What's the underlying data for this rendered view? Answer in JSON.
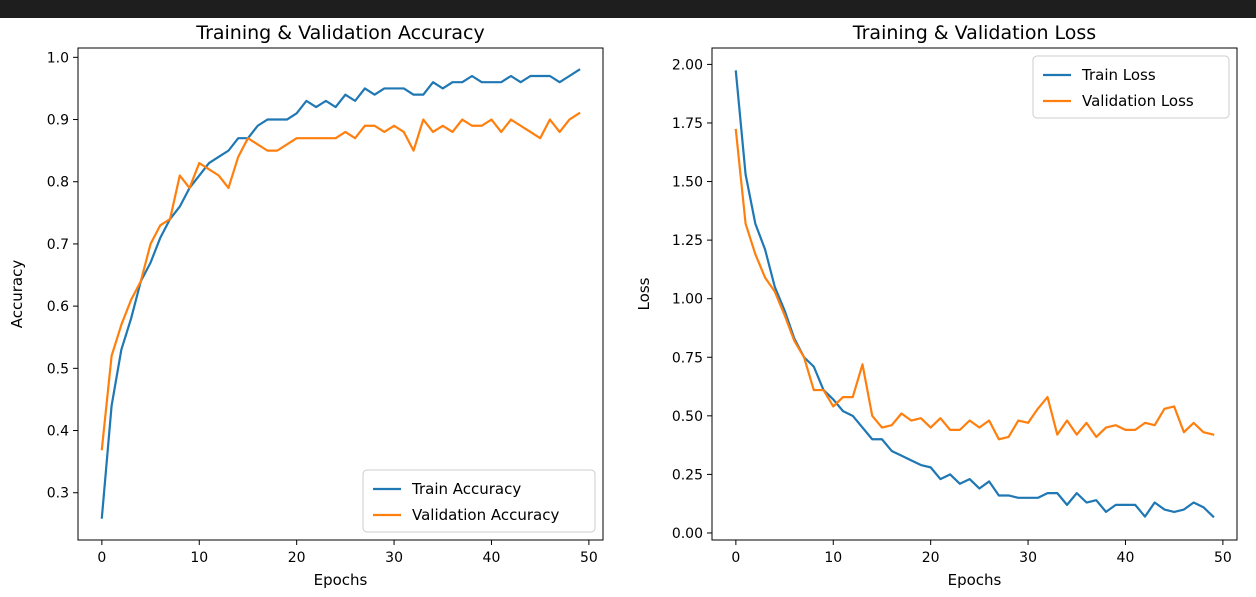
{
  "chart_data": [
    {
      "type": "line",
      "title": "Training & Validation Accuracy",
      "xlabel": "Epochs",
      "ylabel": "Accuracy",
      "xlim": [
        -2.45,
        51.45
      ],
      "ylim": [
        0.224,
        1.015
      ],
      "xticks": [
        0,
        10,
        20,
        30,
        40,
        50
      ],
      "yticks": [
        0.3,
        0.4,
        0.5,
        0.6,
        0.7,
        0.8,
        0.9,
        1.0
      ],
      "ytick_labels": [
        "0.3",
        "0.4",
        "0.5",
        "0.6",
        "0.7",
        "0.8",
        "0.9",
        "1.0"
      ],
      "grid": false,
      "legend": "lower right",
      "x": [
        0,
        1,
        2,
        3,
        4,
        5,
        6,
        7,
        8,
        9,
        10,
        11,
        12,
        13,
        14,
        15,
        16,
        17,
        18,
        19,
        20,
        21,
        22,
        23,
        24,
        25,
        26,
        27,
        28,
        29,
        30,
        31,
        32,
        33,
        34,
        35,
        36,
        37,
        38,
        39,
        40,
        41,
        42,
        43,
        44,
        45,
        46,
        47,
        48,
        49
      ],
      "series": [
        {
          "name": "Train Accuracy",
          "color": "#1f77b4",
          "values": [
            0.26,
            0.44,
            0.53,
            0.58,
            0.64,
            0.67,
            0.71,
            0.74,
            0.76,
            0.79,
            0.81,
            0.83,
            0.84,
            0.85,
            0.87,
            0.87,
            0.89,
            0.9,
            0.9,
            0.9,
            0.91,
            0.93,
            0.92,
            0.93,
            0.92,
            0.94,
            0.93,
            0.95,
            0.94,
            0.95,
            0.95,
            0.95,
            0.94,
            0.94,
            0.96,
            0.95,
            0.96,
            0.96,
            0.97,
            0.96,
            0.96,
            0.96,
            0.97,
            0.96,
            0.97,
            0.97,
            0.97,
            0.96,
            0.97,
            0.98
          ]
        },
        {
          "name": "Validation Accuracy",
          "color": "#ff7f0e",
          "values": [
            0.37,
            0.52,
            0.57,
            0.61,
            0.64,
            0.7,
            0.73,
            0.74,
            0.81,
            0.79,
            0.83,
            0.82,
            0.81,
            0.79,
            0.84,
            0.87,
            0.86,
            0.85,
            0.85,
            0.86,
            0.87,
            0.87,
            0.87,
            0.87,
            0.87,
            0.88,
            0.87,
            0.89,
            0.89,
            0.88,
            0.89,
            0.88,
            0.85,
            0.9,
            0.88,
            0.89,
            0.88,
            0.9,
            0.89,
            0.89,
            0.9,
            0.88,
            0.9,
            0.89,
            0.88,
            0.87,
            0.9,
            0.88,
            0.9,
            0.91
          ]
        }
      ]
    },
    {
      "type": "line",
      "title": "Training & Validation Loss",
      "xlabel": "Epochs",
      "ylabel": "Loss",
      "xlim": [
        -2.45,
        51.45
      ],
      "ylim": [
        -0.03,
        2.07
      ],
      "xticks": [
        0,
        10,
        20,
        30,
        40,
        50
      ],
      "yticks": [
        0.0,
        0.25,
        0.5,
        0.75,
        1.0,
        1.25,
        1.5,
        1.75,
        2.0
      ],
      "ytick_labels": [
        "0.00",
        "0.25",
        "0.50",
        "0.75",
        "1.00",
        "1.25",
        "1.50",
        "1.75",
        "2.00"
      ],
      "grid": false,
      "legend": "upper right",
      "x": [
        0,
        1,
        2,
        3,
        4,
        5,
        6,
        7,
        8,
        9,
        10,
        11,
        12,
        13,
        14,
        15,
        16,
        17,
        18,
        19,
        20,
        21,
        22,
        23,
        24,
        25,
        26,
        27,
        28,
        29,
        30,
        31,
        32,
        33,
        34,
        35,
        36,
        37,
        38,
        39,
        40,
        41,
        42,
        43,
        44,
        45,
        46,
        47,
        48,
        49
      ],
      "series": [
        {
          "name": "Train Loss",
          "color": "#1f77b4",
          "values": [
            1.97,
            1.53,
            1.32,
            1.21,
            1.05,
            0.95,
            0.83,
            0.75,
            0.71,
            0.61,
            0.57,
            0.52,
            0.5,
            0.45,
            0.4,
            0.4,
            0.35,
            0.33,
            0.31,
            0.29,
            0.28,
            0.23,
            0.25,
            0.21,
            0.23,
            0.19,
            0.22,
            0.16,
            0.16,
            0.15,
            0.15,
            0.15,
            0.17,
            0.17,
            0.12,
            0.17,
            0.13,
            0.14,
            0.09,
            0.12,
            0.12,
            0.12,
            0.07,
            0.13,
            0.1,
            0.09,
            0.1,
            0.13,
            0.11,
            0.07
          ]
        },
        {
          "name": "Validation Loss",
          "color": "#ff7f0e",
          "values": [
            1.72,
            1.32,
            1.19,
            1.09,
            1.03,
            0.93,
            0.82,
            0.75,
            0.61,
            0.61,
            0.54,
            0.58,
            0.58,
            0.72,
            0.5,
            0.45,
            0.46,
            0.51,
            0.48,
            0.49,
            0.45,
            0.49,
            0.44,
            0.44,
            0.48,
            0.45,
            0.48,
            0.4,
            0.41,
            0.48,
            0.47,
            0.53,
            0.58,
            0.42,
            0.48,
            0.42,
            0.47,
            0.41,
            0.45,
            0.46,
            0.44,
            0.44,
            0.47,
            0.46,
            0.53,
            0.54,
            0.43,
            0.47,
            0.43,
            0.42
          ]
        }
      ]
    }
  ]
}
